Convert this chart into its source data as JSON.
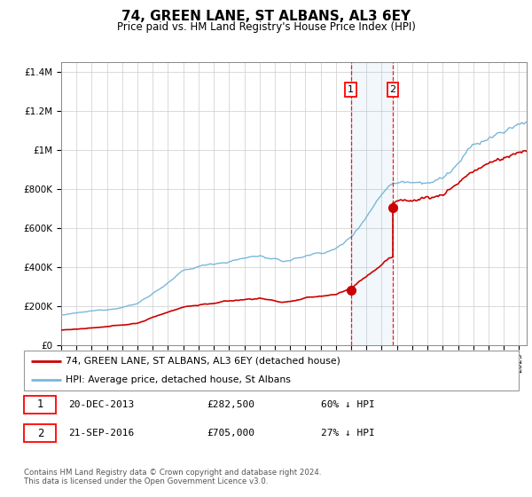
{
  "title": "74, GREEN LANE, ST ALBANS, AL3 6EY",
  "subtitle": "Price paid vs. HM Land Registry's House Price Index (HPI)",
  "hpi_color": "#7ab8d9",
  "price_color": "#cc0000",
  "transaction1_x": 2013.97,
  "transaction1_price": 282500,
  "transaction2_x": 2016.72,
  "transaction2_price": 705000,
  "legend_label_price": "74, GREEN LANE, ST ALBANS, AL3 6EY (detached house)",
  "legend_label_hpi": "HPI: Average price, detached house, St Albans",
  "footer": "Contains HM Land Registry data © Crown copyright and database right 2024.\nThis data is licensed under the Open Government Licence v3.0.",
  "ann_row1_num": "1",
  "ann_row1_date": "20-DEC-2013",
  "ann_row1_price": "£282,500",
  "ann_row1_pct": "60% ↓ HPI",
  "ann_row2_num": "2",
  "ann_row2_date": "21-SEP-2016",
  "ann_row2_price": "£705,000",
  "ann_row2_pct": "27% ↓ HPI",
  "ylim_max": 1450000,
  "xlim_min": 1995.0,
  "xlim_max": 2025.5
}
